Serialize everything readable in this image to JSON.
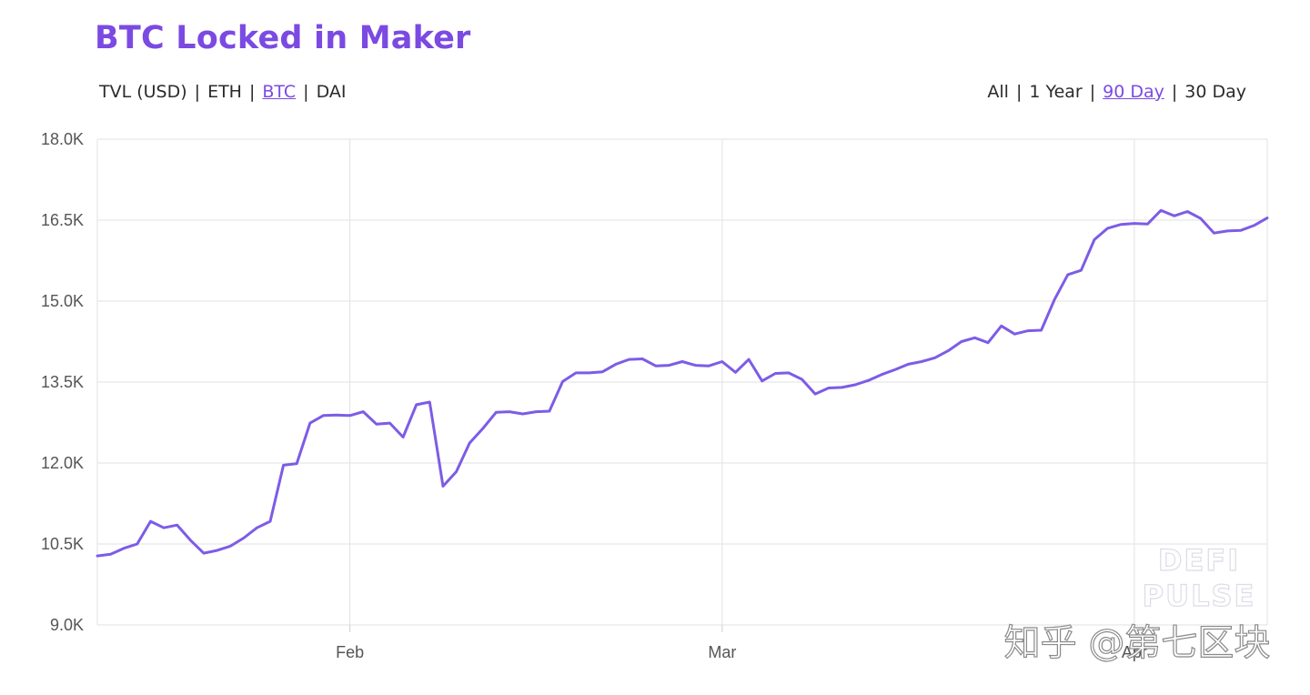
{
  "title": "BTC Locked in Maker",
  "metric_options": [
    {
      "label": "TVL (USD)",
      "active": false
    },
    {
      "label": "ETH",
      "active": false
    },
    {
      "label": "BTC",
      "active": true
    },
    {
      "label": "DAI",
      "active": false
    }
  ],
  "range_options": [
    {
      "label": "All",
      "active": false
    },
    {
      "label": "1 Year",
      "active": false
    },
    {
      "label": "90 Day",
      "active": true
    },
    {
      "label": "30 Day",
      "active": false
    }
  ],
  "separator": "|",
  "watermarks": {
    "defi_line1": "DEFI",
    "defi_line2": "PULSE",
    "zhihu": "知乎 @第七区块"
  },
  "colors": {
    "accent": "#7b4ae2",
    "line": "#7d5ce6",
    "grid": "#e2e2e2",
    "axis_text": "#555555"
  },
  "chart_data": {
    "type": "line",
    "title": "BTC Locked in Maker",
    "xlabel": "",
    "ylabel": "",
    "ylim": [
      9000,
      18000
    ],
    "y_ticks": [
      9000,
      10500,
      12000,
      13500,
      15000,
      16500,
      18000
    ],
    "y_tick_labels": [
      "9.0K",
      "10.5K",
      "12.0K",
      "13.5K",
      "15.0K",
      "16.5K",
      "18.0K"
    ],
    "x_tick_labels": [
      {
        "label": "Feb",
        "date": "Feb 1"
      },
      {
        "label": "Mar",
        "date": "Mar 1"
      },
      {
        "label": "Apr",
        "date": "Apr 1"
      }
    ],
    "grid": true,
    "x_start": "Jan 13",
    "x_end": "Apr 11",
    "series": [
      {
        "values": [
          10280,
          10310,
          10420,
          10500,
          10920,
          10800,
          10850,
          10570,
          10330,
          10380,
          10460,
          10610,
          10800,
          10920,
          11960,
          11990,
          12740,
          12880,
          12890,
          12880,
          12950,
          12720,
          12740,
          12480,
          13080,
          13130,
          11570,
          11840,
          12370,
          12640,
          12940,
          12950,
          12910,
          12950,
          12960,
          13510,
          13670,
          13670,
          13690,
          13830,
          13920,
          13930,
          13800,
          13810,
          13880,
          13810,
          13800,
          13880,
          13680,
          13920,
          13520,
          13660,
          13670,
          13550,
          13280,
          13390,
          13400,
          13450,
          13530,
          13640,
          13730,
          13830,
          13880,
          13950,
          14080,
          14250,
          14320,
          14230,
          14540,
          14390,
          14450,
          14460,
          15030,
          15490,
          15570,
          16140,
          16350,
          16420,
          16440,
          16430,
          16680,
          16580,
          16660,
          16530,
          16260,
          16300,
          16310,
          16400,
          16540
        ]
      }
    ]
  }
}
